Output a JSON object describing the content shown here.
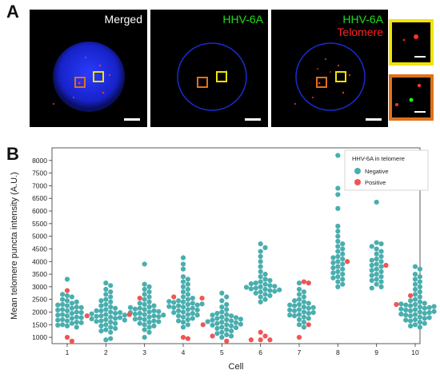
{
  "panels": {
    "a": "A",
    "b": "B"
  },
  "micrographs": [
    {
      "name": "merged",
      "labels": [
        {
          "text": "Merged",
          "color": "#ffffff"
        }
      ]
    },
    {
      "name": "hhv6a",
      "labels": [
        {
          "text": "HHV-6A",
          "color": "#22dd22"
        }
      ]
    },
    {
      "name": "hhv6a-telomere",
      "labels": [
        {
          "text": "HHV-6A",
          "color": "#22dd22"
        },
        {
          "text": "Telomere",
          "color": "#ff2020"
        }
      ]
    }
  ],
  "colors": {
    "negative": "#4aaeae",
    "positive": "#f05555",
    "nucleus": "#1a2bd0",
    "yellow_box": "#f2e400",
    "orange_box": "#e0711a"
  },
  "chart_data": {
    "type": "scatter",
    "variant": "swarm",
    "xlabel": "Cell",
    "ylabel": "Mean telomere puncta intensity (A.U.)",
    "categories": [
      "1",
      "2",
      "3",
      "4",
      "5",
      "6",
      "7",
      "8",
      "9",
      "10"
    ],
    "ylim": [
      750,
      8500
    ],
    "yticks": [
      1000,
      1500,
      2000,
      2500,
      3000,
      3500,
      4000,
      4500,
      5000,
      5500,
      6000,
      6500,
      7000,
      7500,
      8000
    ],
    "legend": {
      "title": "HHV-6A in telomere",
      "position": "top-right",
      "entries": [
        "Negative",
        "Positive"
      ]
    },
    "series": [
      {
        "name": "Negative",
        "values": [
          [
            2650,
            2600,
            2500,
            2450,
            2350,
            2300,
            2250,
            2200,
            2150,
            2100,
            2050,
            2000,
            1950,
            1900,
            1850,
            1800,
            1750,
            1700,
            1650,
            1600,
            1550,
            1500,
            1450,
            1400,
            3300,
            2700,
            2400,
            2280,
            2180,
            2080,
            1980,
            1880,
            1780,
            1680,
            1580,
            1480
          ],
          [
            3150,
            3050,
            2900,
            2800,
            2700,
            2600,
            2500,
            2400,
            2300,
            2200,
            2100,
            2050,
            2000,
            1950,
            1900,
            1850,
            1800,
            1750,
            1700,
            1650,
            1600,
            1550,
            1500,
            1450,
            1400,
            1350,
            1300,
            1250,
            1200,
            900,
            950,
            2450,
            2250,
            2150,
            2050,
            1980,
            1930,
            1880,
            1830,
            1780,
            1730,
            1680,
            1630
          ],
          [
            3900,
            3100,
            3000,
            2900,
            2800,
            2700,
            2600,
            2500,
            2400,
            2300,
            2200,
            2150,
            2100,
            2050,
            2000,
            1950,
            1900,
            1850,
            1800,
            1750,
            1700,
            1650,
            1600,
            1550,
            1500,
            1450,
            1400,
            1300,
            1200,
            1000,
            2250,
            2120,
            2020,
            1920,
            1820,
            1720,
            1620,
            2350,
            2180,
            1980,
            1880
          ],
          [
            4150,
            3900,
            3700,
            3400,
            3300,
            3200,
            3100,
            3000,
            2900,
            2800,
            2700,
            2600,
            2500,
            2450,
            2400,
            2350,
            2300,
            2250,
            2200,
            2150,
            2100,
            2050,
            2000,
            1950,
            1900,
            1850,
            1800,
            1750,
            1700,
            1650,
            1600,
            1500,
            1400,
            2550,
            2380,
            2280,
            2180,
            2080,
            1980,
            1880,
            2420,
            2320,
            2220
          ],
          [
            2750,
            2600,
            2450,
            2300,
            2200,
            2100,
            2000,
            1950,
            1900,
            1850,
            1800,
            1750,
            1700,
            1650,
            1600,
            1550,
            1500,
            1450,
            1400,
            1350,
            1300,
            1250,
            1200,
            1150,
            1100,
            1050,
            1000,
            1880,
            1780,
            1680,
            1580,
            1480,
            1380,
            1620,
            1520,
            1720
          ],
          [
            4700,
            4550,
            4400,
            4200,
            4000,
            3800,
            3600,
            3500,
            3400,
            3300,
            3200,
            3150,
            3100,
            3050,
            3000,
            2950,
            2900,
            2850,
            2800,
            2750,
            2700,
            2650,
            2600,
            2500,
            2400,
            3250,
            3120,
            3020,
            2920,
            2820,
            2980,
            2880
          ],
          [
            3150,
            2900,
            2800,
            2700,
            2600,
            2500,
            2450,
            2400,
            2350,
            2300,
            2250,
            2200,
            2150,
            2100,
            2050,
            2000,
            1950,
            1900,
            1850,
            1800,
            1750,
            1700,
            1600,
            1500,
            1400,
            2280,
            2180,
            2080,
            1980,
            1880
          ],
          [
            8200,
            6900,
            6650,
            6100,
            5400,
            5200,
            5000,
            4800,
            4700,
            4600,
            4500,
            4400,
            4300,
            4200,
            4100,
            4000,
            3900,
            3800,
            3700,
            3600,
            3500,
            3400,
            3300,
            3200,
            3100,
            3000,
            4150,
            3950,
            3750,
            3550,
            3350
          ],
          [
            6350,
            4750,
            4700,
            4600,
            4500,
            4400,
            4300,
            4200,
            4100,
            4000,
            3900,
            3800,
            3700,
            3600,
            3500,
            3400,
            3300,
            3200,
            3100,
            3000,
            2950,
            4050,
            3850,
            3650,
            3450,
            3250
          ],
          [
            3800,
            3700,
            3500,
            3400,
            3300,
            3200,
            3100,
            3000,
            2900,
            2800,
            2700,
            2600,
            2500,
            2450,
            2400,
            2350,
            2300,
            2250,
            2200,
            2150,
            2100,
            2050,
            2000,
            1950,
            1900,
            1850,
            1800,
            1750,
            1700,
            1650,
            1600,
            1550,
            1500,
            1450,
            1400,
            2280,
            2180,
            2080,
            1980,
            1880,
            1780,
            1680,
            2320,
            2220,
            2120,
            2020,
            1920
          ]
        ]
      },
      {
        "name": "Positive",
        "values": [
          [
            2850,
            1000,
            850
          ],
          [
            1850,
            1900
          ],
          [
            2550
          ],
          [
            2600,
            2550,
            1000,
            950
          ],
          [
            1500,
            1050,
            850
          ],
          [
            1200,
            1050,
            900,
            900,
            900
          ],
          [
            3200,
            3150,
            1000,
            1500
          ],
          [
            4000
          ],
          [
            3850
          ],
          [
            2650,
            2300
          ]
        ]
      }
    ]
  }
}
